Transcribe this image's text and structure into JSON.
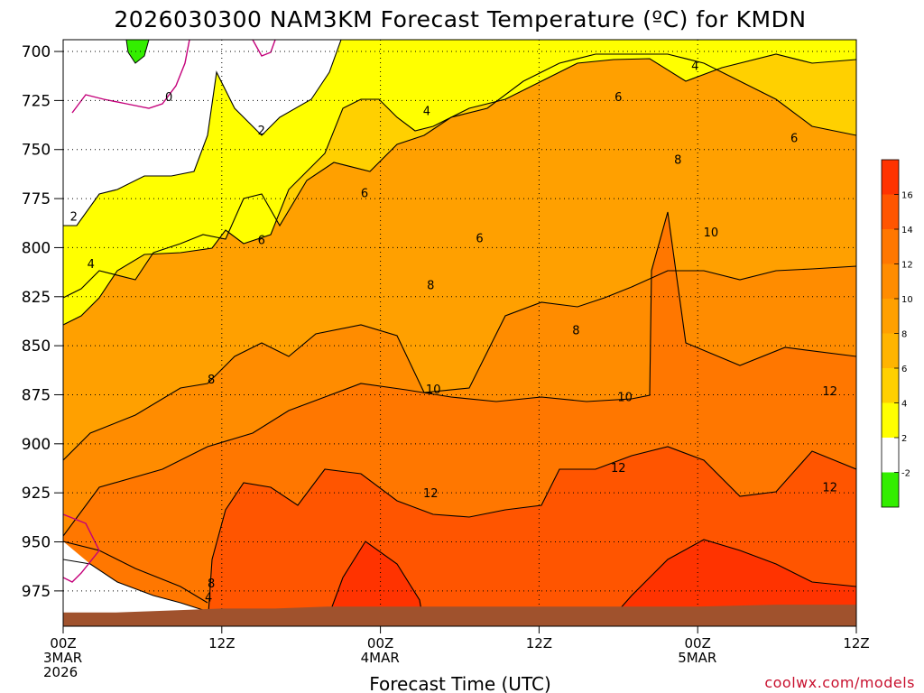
{
  "chart_data": {
    "type": "heatmap",
    "title": "2026030300 NAM3KM Forecast Temperature (ºC) for KMDN",
    "xlabel": "Forecast Time (UTC)",
    "ylabel": "",
    "credit": "coolwx.com/models",
    "y_ticks": [
      700,
      725,
      750,
      775,
      800,
      825,
      850,
      875,
      900,
      925,
      950,
      975
    ],
    "y_tick_labels": [
      "700",
      "725",
      "750",
      "775",
      "800",
      "825",
      "850",
      "875",
      "900",
      "925",
      "950",
      "975"
    ],
    "ylim": [
      694,
      993
    ],
    "x_hours": [
      0,
      12,
      24,
      36,
      48,
      60
    ],
    "x_tick_labels": [
      [
        "00Z",
        "3MAR",
        "2026"
      ],
      [
        "12Z",
        "",
        ""
      ],
      [
        "00Z",
        "4MAR",
        ""
      ],
      [
        "12Z",
        "",
        ""
      ],
      [
        "00Z",
        "5MAR",
        ""
      ],
      [
        "12Z",
        "",
        ""
      ]
    ],
    "xlim": [
      0,
      60
    ],
    "colorbar": {
      "labels": [
        "16",
        "14",
        "12",
        "10",
        "8",
        "6",
        "4",
        "2",
        "-2"
      ],
      "levels": [
        16,
        14,
        12,
        10,
        8,
        6,
        4,
        2,
        -2
      ],
      "colors": [
        "#ff3300",
        "#ff5500",
        "#ff7700",
        "#ff8c00",
        "#ffa000",
        "#ffb400",
        "#ffd000",
        "#ffff00",
        "#ffffff",
        "#33ee00"
      ]
    },
    "contour_labels": [
      {
        "text": "0",
        "hour": 8.0,
        "p": 723
      },
      {
        "text": "2",
        "hour": 0.8,
        "p": 784
      },
      {
        "text": "2",
        "hour": 15.0,
        "p": 740
      },
      {
        "text": "4",
        "hour": 2.1,
        "p": 808
      },
      {
        "text": "4",
        "hour": 27.5,
        "p": 730
      },
      {
        "text": "4",
        "hour": 47.8,
        "p": 707
      },
      {
        "text": "6",
        "hour": 15.0,
        "p": 796
      },
      {
        "text": "6",
        "hour": 22.8,
        "p": 772
      },
      {
        "text": "6",
        "hour": 31.5,
        "p": 795
      },
      {
        "text": "6",
        "hour": 42.0,
        "p": 723
      },
      {
        "text": "6",
        "hour": 55.3,
        "p": 744
      },
      {
        "text": "8",
        "hour": 11.2,
        "p": 867
      },
      {
        "text": "8",
        "hour": 27.8,
        "p": 819
      },
      {
        "text": "8",
        "hour": 38.8,
        "p": 842
      },
      {
        "text": "8",
        "hour": 46.5,
        "p": 755
      },
      {
        "text": "8",
        "hour": 11.2,
        "p": 971
      },
      {
        "text": "4",
        "hour": 11.0,
        "p": 978
      },
      {
        "text": "10",
        "hour": 28.0,
        "p": 872
      },
      {
        "text": "10",
        "hour": 42.5,
        "p": 876
      },
      {
        "text": "10",
        "hour": 49.0,
        "p": 792
      },
      {
        "text": "12",
        "hour": 27.8,
        "p": 925
      },
      {
        "text": "12",
        "hour": 42.0,
        "p": 912
      },
      {
        "text": "12",
        "hour": 58.0,
        "p": 873
      },
      {
        "text": "12",
        "hour": 58.0,
        "p": 922
      }
    ],
    "terrain_p": [
      {
        "hour": 0,
        "p": 986
      },
      {
        "hour": 4,
        "p": 986
      },
      {
        "hour": 8,
        "p": 985
      },
      {
        "hour": 12,
        "p": 984
      },
      {
        "hour": 16,
        "p": 984
      },
      {
        "hour": 20,
        "p": 983
      },
      {
        "hour": 24,
        "p": 983
      },
      {
        "hour": 30,
        "p": 983
      },
      {
        "hour": 36,
        "p": 983
      },
      {
        "hour": 42,
        "p": 983
      },
      {
        "hour": 48,
        "p": 983
      },
      {
        "hour": 54,
        "p": 982
      },
      {
        "hour": 60,
        "p": 982
      }
    ]
  }
}
